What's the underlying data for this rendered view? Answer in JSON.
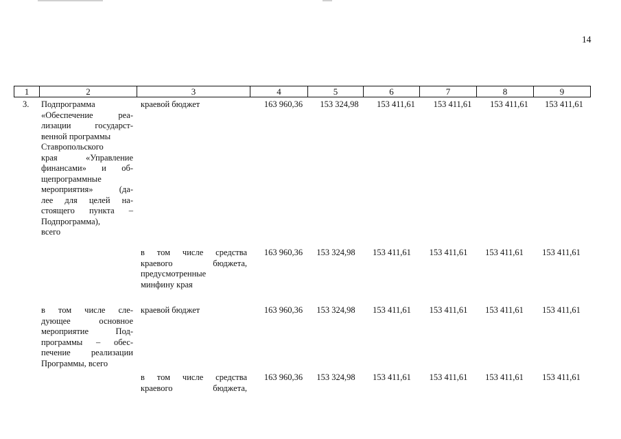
{
  "page_number": "14",
  "header_cols": [
    "1",
    "2",
    "3",
    "4",
    "5",
    "6",
    "7",
    "8",
    "9"
  ],
  "rows": [
    {
      "num": "3.",
      "desc_lines": [
        "Подпрограмма",
        "«Обеспечение реа-",
        "лизации государст-",
        "венной программы",
        "Ставропольского",
        "края «Управление",
        "финансами» и об-",
        "щепрограммные",
        "мероприятия» (да-",
        "лее для целей на-",
        "стоящего пункта –",
        "Подпрограмма),",
        "всего"
      ],
      "source_lines": [
        "краевой бюджет"
      ],
      "values": [
        "163 960,36",
        "153 324,98",
        "153 411,61",
        "153 411,61",
        "153 411,61",
        "153 411,61"
      ]
    },
    {
      "source_lines": [
        "в том числе средства",
        "краевого бюджета,",
        "предусмотренные",
        "минфину края"
      ],
      "values": [
        "163 960,36",
        "153 324,98",
        "153 411,61",
        "153 411,61",
        "153 411,61",
        "153 411,61"
      ]
    },
    {
      "desc_lines": [
        "в том числе сле-",
        "дующее основное",
        "мероприятие Под-",
        "программы – обес-",
        "печение реализации",
        "Программы, всего"
      ],
      "source_lines": [
        "краевой бюджет"
      ],
      "values": [
        "163 960,36",
        "153 324,98",
        "153 411,61",
        "153 411,61",
        "153 411,61",
        "153 411,61"
      ]
    },
    {
      "source_lines": [
        "в том числе средства",
        "краевого бюджета,"
      ],
      "values": [
        "163 960,36",
        "153 324,98",
        "153 411,61",
        "153 411,61",
        "153 411,61",
        "153 411,61"
      ]
    }
  ]
}
